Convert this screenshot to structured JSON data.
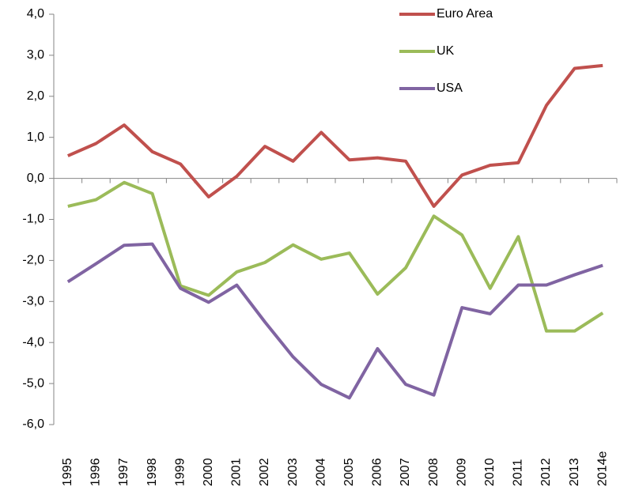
{
  "chart_data": {
    "type": "line",
    "categories": [
      "1995",
      "1996",
      "1997",
      "1998",
      "1999",
      "2000",
      "2001",
      "2002",
      "2003",
      "2004",
      "2005",
      "2006",
      "2007",
      "2008",
      "2009",
      "2010",
      "2011",
      "2012",
      "2013",
      "2014e"
    ],
    "series": [
      {
        "name": "Euro Area",
        "color": "#c0504d",
        "values": [
          0.55,
          0.85,
          1.3,
          0.65,
          0.35,
          -0.45,
          0.05,
          0.78,
          0.42,
          1.12,
          0.45,
          0.5,
          0.42,
          -0.68,
          0.08,
          0.32,
          0.38,
          1.78,
          2.68,
          2.75
        ]
      },
      {
        "name": "UK",
        "color": "#9bbb59",
        "values": [
          -0.68,
          -0.52,
          -0.1,
          -0.37,
          -2.62,
          -2.85,
          -2.28,
          -2.05,
          -1.62,
          -1.97,
          -1.82,
          -2.82,
          -2.18,
          -0.92,
          -1.38,
          -2.68,
          -1.42,
          -3.72,
          -3.72,
          -3.28
        ]
      },
      {
        "name": "USA",
        "color": "#8064a2",
        "values": [
          -2.52,
          -2.08,
          -1.63,
          -1.6,
          -2.68,
          -3.02,
          -2.6,
          -3.5,
          -4.35,
          -5.02,
          -5.35,
          -4.15,
          -5.02,
          -5.28,
          -3.15,
          -3.3,
          -2.6,
          -2.6,
          -2.35,
          -2.12
        ]
      }
    ],
    "ylim": [
      -6,
      4
    ],
    "yticks": [
      {
        "value": -6,
        "label": "-6,0"
      },
      {
        "value": -5,
        "label": "-5,0"
      },
      {
        "value": -4,
        "label": "-4,0"
      },
      {
        "value": -3,
        "label": "-3,0"
      },
      {
        "value": -2,
        "label": "-2,0"
      },
      {
        "value": -1,
        "label": "-1,0"
      },
      {
        "value": 0,
        "label": "0,0"
      },
      {
        "value": 1,
        "label": "1,0"
      },
      {
        "value": 2,
        "label": "2,0"
      },
      {
        "value": 3,
        "label": "3,0"
      },
      {
        "value": 4,
        "label": "4,0"
      }
    ],
    "legend": "top-right"
  }
}
